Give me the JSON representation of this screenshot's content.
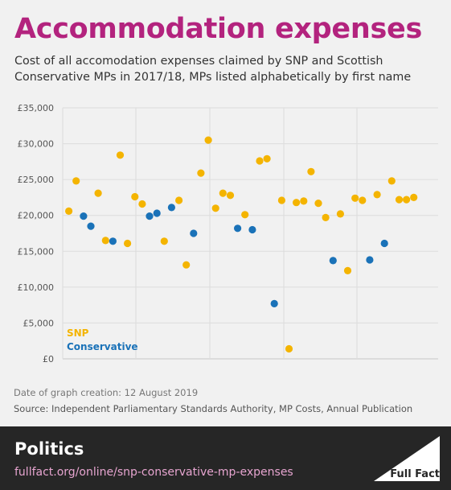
{
  "header": {
    "title": "Accommodation expenses",
    "subtitle": "Cost of all accomodation expenses claimed by SNP and Scottish Conservative MPs in 2017/18, MPs listed alphabetically by first name"
  },
  "chart_data": {
    "type": "scatter",
    "title": "Accommodation expenses",
    "xlabel": "",
    "ylabel": "",
    "ylim": [
      0,
      35000
    ],
    "y_ticks": [
      "£0",
      "£5,000",
      "£10,000",
      "£15,000",
      "£20,000",
      "£25,000",
      "£30,000",
      "£35,000"
    ],
    "grid": true,
    "legend_position": "bottom-left",
    "series": [
      {
        "name": "SNP",
        "color": "#f4b400",
        "points": [
          {
            "x": 1,
            "y": 20600
          },
          {
            "x": 2,
            "y": 24800
          },
          {
            "x": 5,
            "y": 23100
          },
          {
            "x": 6,
            "y": 16500
          },
          {
            "x": 8,
            "y": 28400
          },
          {
            "x": 9,
            "y": 16100
          },
          {
            "x": 10,
            "y": 22600
          },
          {
            "x": 11,
            "y": 21600
          },
          {
            "x": 14,
            "y": 16400
          },
          {
            "x": 16,
            "y": 22100
          },
          {
            "x": 17,
            "y": 13100
          },
          {
            "x": 19,
            "y": 25900
          },
          {
            "x": 20,
            "y": 30500
          },
          {
            "x": 21,
            "y": 21000
          },
          {
            "x": 22,
            "y": 23100
          },
          {
            "x": 23,
            "y": 22800
          },
          {
            "x": 25,
            "y": 20100
          },
          {
            "x": 27,
            "y": 27600
          },
          {
            "x": 28,
            "y": 27900
          },
          {
            "x": 30,
            "y": 22100
          },
          {
            "x": 31,
            "y": 1400
          },
          {
            "x": 32,
            "y": 21800
          },
          {
            "x": 33,
            "y": 22000
          },
          {
            "x": 34,
            "y": 26100
          },
          {
            "x": 35,
            "y": 21700
          },
          {
            "x": 36,
            "y": 19700
          },
          {
            "x": 38,
            "y": 20200
          },
          {
            "x": 39,
            "y": 12300
          },
          {
            "x": 40,
            "y": 22400
          },
          {
            "x": 41,
            "y": 22100
          },
          {
            "x": 43,
            "y": 22900
          },
          {
            "x": 45,
            "y": 24800
          },
          {
            "x": 46,
            "y": 22200
          },
          {
            "x": 47,
            "y": 22200
          },
          {
            "x": 48,
            "y": 22500
          }
        ]
      },
      {
        "name": "Conservative",
        "color": "#1a72b8",
        "points": [
          {
            "x": 3,
            "y": 19900
          },
          {
            "x": 4,
            "y": 18500
          },
          {
            "x": 7,
            "y": 16400
          },
          {
            "x": 12,
            "y": 19900
          },
          {
            "x": 13,
            "y": 20300
          },
          {
            "x": 15,
            "y": 21100
          },
          {
            "x": 18,
            "y": 17500
          },
          {
            "x": 24,
            "y": 18200
          },
          {
            "x": 26,
            "y": 18000
          },
          {
            "x": 29,
            "y": 7700
          },
          {
            "x": 37,
            "y": 13700
          },
          {
            "x": 42,
            "y": 13800
          },
          {
            "x": 44,
            "y": 16100
          }
        ]
      }
    ]
  },
  "meta": {
    "date_line": "Date of graph creation: 12 August 2019",
    "source_line": "Source: Independent Parliamentary Standards Authority, MP Costs, Annual Publication"
  },
  "footer": {
    "section": "Politics",
    "url": "fullfact.org/online/snp-conservative-mp-expenses",
    "logo_text": "Full Fact"
  },
  "colors": {
    "title": "#b3237e",
    "snp": "#f4b400",
    "conservative": "#1a72b8",
    "footer_bg": "#262626",
    "footer_url": "#e7a5d0"
  }
}
